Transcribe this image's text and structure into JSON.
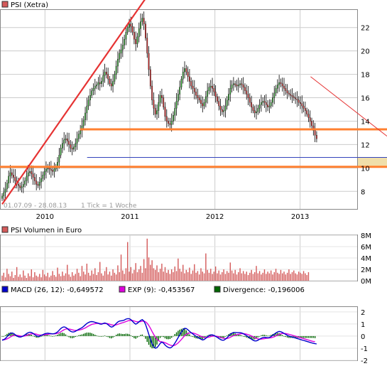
{
  "colors": {
    "up": "#2aa12a",
    "down": "#cc2222",
    "wick": "#000000",
    "trend_red": "#e63333",
    "support_orange": "#ff8030",
    "blue_line": "#3344bb",
    "zone": "#f0dfaa",
    "macd": "#0000cc",
    "signal": "#dd00dd",
    "divergence": "#006600",
    "volume": "#d45a5a",
    "grid": "#cccccc"
  },
  "panels": {
    "price": {
      "title": "PSI (Xetra)",
      "date_range": "01.07.09 - 28.08.13",
      "tick_note": "1 Tick = 1 Woche"
    },
    "volume": {
      "title": "PSI Volumen in Euro"
    },
    "macd": {
      "legend": [
        {
          "label": "MACD (26, 12): -0,649572",
          "color": "#0000cc"
        },
        {
          "label": "EXP (9): -0,453567",
          "color": "#dd00dd"
        },
        {
          "label": "Divergence: -0,196006",
          "color": "#006600"
        }
      ]
    }
  },
  "chart_data": [
    {
      "type": "candlestick",
      "title": "PSI (Xetra)",
      "subtitle": "01.07.09 - 28.08.13 1 Tick = 1 Woche",
      "x_ticks": [
        "2010",
        "2011",
        "2012",
        "2013"
      ],
      "x_range": [
        "2009-07-01",
        "2013-08-28"
      ],
      "y_ticks": [
        "8",
        "10",
        "12",
        "14",
        "16",
        "18",
        "20",
        "22"
      ],
      "ylim": [
        6.5,
        23.5
      ],
      "grid": true,
      "weekly_close": [
        7.6,
        7.9,
        8.2,
        8.7,
        9.3,
        9.6,
        9.4,
        9.2,
        8.9,
        8.6,
        8.5,
        8.3,
        8.4,
        8.6,
        8.9,
        9.3,
        9.6,
        9.7,
        9.5,
        9.2,
        8.9,
        8.6,
        8.5,
        8.8,
        9.1,
        9.4,
        9.7,
        9.9,
        10.0,
        9.9,
        9.8,
        9.7,
        9.9,
        10.1,
        10.5,
        11.1,
        11.7,
        12.1,
        12.4,
        12.5,
        12.3,
        12.0,
        11.7,
        11.6,
        11.8,
        12.1,
        12.5,
        12.9,
        13.2,
        13.6,
        14.1,
        14.7,
        15.3,
        15.8,
        16.2,
        16.6,
        16.8,
        17.0,
        17.1,
        17.3,
        17.2,
        17.4,
        17.9,
        18.2,
        18.0,
        17.6,
        17.2,
        17.0,
        17.4,
        18.0,
        18.7,
        19.3,
        19.8,
        20.1,
        20.5,
        21.0,
        21.6,
        22.0,
        22.3,
        22.1,
        21.6,
        21.0,
        20.6,
        21.2,
        21.9,
        22.5,
        22.8,
        22.3,
        21.1,
        19.8,
        18.4,
        17.0,
        15.8,
        15.1,
        14.6,
        14.9,
        15.6,
        16.2,
        16.0,
        15.2,
        14.4,
        14.0,
        13.8,
        13.7,
        14.0,
        14.5,
        15.1,
        15.7,
        16.3,
        16.9,
        17.6,
        18.2,
        18.5,
        18.2,
        17.8,
        17.4,
        17.0,
        16.8,
        16.5,
        16.2,
        16.0,
        15.8,
        15.5,
        15.3,
        15.6,
        16.1,
        16.6,
        16.9,
        17.0,
        16.8,
        16.5,
        16.1,
        15.7,
        15.3,
        15.0,
        14.8,
        14.9,
        15.3,
        15.8,
        16.3,
        16.8,
        17.1,
        17.2,
        17.1,
        17.0,
        17.1,
        17.2,
        17.1,
        16.9,
        16.6,
        16.3,
        16.0,
        15.6,
        15.2,
        14.9,
        14.7,
        14.8,
        15.1,
        15.4,
        15.6,
        15.7,
        15.6,
        15.4,
        15.2,
        15.3,
        15.6,
        16.0,
        16.4,
        16.8,
        17.1,
        17.3,
        17.2,
        17.0,
        16.8,
        16.6,
        16.4,
        16.3,
        16.2,
        16.1,
        16.0,
        15.9,
        15.8,
        15.6,
        15.5,
        15.3,
        15.1,
        14.9,
        14.6,
        14.3,
        14.0,
        13.6,
        13.2,
        12.8,
        12.5
      ],
      "annotations": {
        "orange_support_levels": [
          13.3,
          10.1
        ],
        "blue_level": 10.9,
        "red_trendline": {
          "from": [
            "2009-07-01",
            6.9
          ],
          "to": [
            "2011-03-10",
            24.5
          ]
        },
        "descending_resistance": {
          "from": [
            "2013-02-15",
            17.8
          ],
          "to": [
            "2013-08-28",
            13.2
          ]
        },
        "price_zone": [
          10.1,
          10.9
        ]
      }
    },
    {
      "type": "bar",
      "title": "PSI Volumen in Euro",
      "y_ticks": [
        "0M",
        "2M",
        "4M",
        "6M",
        "8M"
      ],
      "ylim": [
        0,
        8
      ],
      "weekly_volume_m": [
        0.9,
        1.4,
        0.6,
        2.1,
        1.2,
        0.8,
        1.6,
        0.5,
        1.0,
        2.4,
        0.7,
        1.1,
        0.6,
        1.8,
        0.9,
        0.5,
        1.3,
        0.8,
        2.0,
        0.6,
        1.5,
        0.9,
        0.7,
        1.2,
        0.6,
        1.9,
        1.1,
        0.8,
        1.4,
        0.6,
        0.9,
        1.7,
        1.0,
        0.7,
        2.3,
        1.2,
        0.8,
        1.6,
        0.9,
        1.3,
        2.8,
        1.1,
        0.7,
        1.5,
        0.9,
        1.2,
        2.1,
        1.4,
        0.8,
        2.6,
        1.6,
        1.1,
        3.0,
        1.4,
        0.9,
        1.8,
        1.2,
        2.2,
        1.0,
        1.5,
        3.3,
        1.3,
        0.9,
        1.7,
        2.4,
        1.1,
        1.6,
        0.9,
        2.0,
        1.4,
        1.1,
        2.7,
        1.5,
        4.6,
        1.8,
        1.2,
        2.2,
        6.8,
        1.6,
        2.4,
        1.3,
        1.9,
        3.1,
        1.5,
        2.0,
        2.6,
        1.4,
        3.8,
        2.2,
        7.4,
        4.1,
        2.8,
        3.6,
        2.2,
        1.9,
        2.7,
        1.5,
        2.1,
        3.0,
        1.6,
        2.4,
        1.4,
        1.9,
        1.2,
        2.0,
        1.5,
        2.5,
        1.7,
        3.9,
        2.1,
        1.6,
        2.8,
        1.3,
        1.9,
        1.5,
        2.3,
        1.2,
        1.8,
        2.9,
        1.4,
        1.7,
        1.1,
        2.2,
        1.6,
        1.3,
        4.8,
        1.9,
        1.4,
        2.1,
        1.2,
        1.6,
        2.5,
        1.3,
        1.8,
        1.1,
        1.5,
        2.0,
        1.2,
        1.7,
        1.4,
        3.2,
        1.8,
        1.3,
        1.9,
        1.1,
        1.5,
        2.2,
        1.3,
        1.7,
        1.2,
        1.6,
        1.0,
        1.4,
        1.9,
        1.2,
        1.5,
        2.6,
        1.3,
        1.7,
        1.1,
        1.4,
        2.0,
        1.2,
        1.6,
        1.3,
        1.8,
        1.1,
        1.5,
        2.1,
        1.4,
        1.2,
        1.9,
        1.3,
        1.6,
        1.1,
        1.4,
        2.0,
        1.2,
        1.5,
        1.8,
        1.3,
        1.1,
        1.6,
        1.4,
        1.2,
        1.7,
        1.3,
        1.0,
        1.5
      ]
    },
    {
      "type": "line",
      "title": "MACD (26, 12) / EXP (9) / Divergence",
      "y_ticks": [
        "-2",
        "-1",
        "0",
        "1",
        "2"
      ],
      "ylim": [
        -2,
        2.4
      ],
      "series": [
        {
          "name": "MACD (26, 12)",
          "values": [
            -0.35,
            -0.3,
            -0.2,
            -0.05,
            0.1,
            0.22,
            0.26,
            0.22,
            0.12,
            0.02,
            -0.05,
            -0.08,
            -0.05,
            0.02,
            0.1,
            0.2,
            0.28,
            0.32,
            0.3,
            0.22,
            0.12,
            0.03,
            -0.02,
            0.0,
            0.06,
            0.12,
            0.18,
            0.22,
            0.24,
            0.22,
            0.2,
            0.18,
            0.2,
            0.25,
            0.34,
            0.48,
            0.62,
            0.72,
            0.76,
            0.72,
            0.62,
            0.5,
            0.4,
            0.34,
            0.34,
            0.4,
            0.48,
            0.56,
            0.62,
            0.7,
            0.8,
            0.92,
            1.04,
            1.12,
            1.18,
            1.2,
            1.18,
            1.14,
            1.1,
            1.06,
            1.0,
            0.98,
            1.04,
            1.08,
            1.04,
            0.94,
            0.82,
            0.74,
            0.78,
            0.9,
            1.04,
            1.16,
            1.24,
            1.26,
            1.28,
            1.32,
            1.4,
            1.44,
            1.44,
            1.36,
            1.22,
            1.08,
            0.98,
            1.06,
            1.18,
            1.3,
            1.36,
            1.24,
            0.96,
            0.58,
            0.16,
            -0.26,
            -0.62,
            -0.86,
            -1.0,
            -0.96,
            -0.8,
            -0.6,
            -0.5,
            -0.58,
            -0.74,
            -0.86,
            -0.94,
            -0.98,
            -0.92,
            -0.78,
            -0.58,
            -0.36,
            -0.12,
            0.1,
            0.32,
            0.52,
            0.64,
            0.62,
            0.52,
            0.4,
            0.28,
            0.18,
            0.08,
            -0.02,
            -0.1,
            -0.18,
            -0.26,
            -0.32,
            -0.28,
            -0.18,
            -0.06,
            0.04,
            0.1,
            0.1,
            0.06,
            -0.02,
            -0.1,
            -0.2,
            -0.28,
            -0.34,
            -0.34,
            -0.26,
            -0.14,
            0.0,
            0.14,
            0.24,
            0.3,
            0.3,
            0.28,
            0.28,
            0.28,
            0.26,
            0.2,
            0.12,
            0.04,
            -0.06,
            -0.16,
            -0.26,
            -0.34,
            -0.4,
            -0.4,
            -0.34,
            -0.26,
            -0.18,
            -0.12,
            -0.1,
            -0.12,
            -0.14,
            -0.12,
            -0.04,
            0.06,
            0.16,
            0.26,
            0.34,
            0.38,
            0.36,
            0.3,
            0.22,
            0.14,
            0.06,
            0.0,
            -0.04,
            -0.08,
            -0.12,
            -0.16,
            -0.2,
            -0.24,
            -0.28,
            -0.32,
            -0.36,
            -0.4,
            -0.44,
            -0.48,
            -0.52,
            -0.56,
            -0.6,
            -0.62,
            -0.65
          ]
        },
        {
          "name": "EXP (9)",
          "values": [
            -0.3,
            -0.3,
            -0.28,
            -0.23,
            -0.16,
            -0.08,
            0.0,
            0.05,
            0.07,
            0.06,
            0.04,
            0.01,
            -0.01,
            -0.01,
            0.01,
            0.05,
            0.1,
            0.15,
            0.19,
            0.2,
            0.19,
            0.16,
            0.12,
            0.09,
            0.08,
            0.09,
            0.11,
            0.13,
            0.15,
            0.17,
            0.18,
            0.18,
            0.18,
            0.2,
            0.23,
            0.28,
            0.36,
            0.44,
            0.52,
            0.58,
            0.6,
            0.59,
            0.56,
            0.52,
            0.48,
            0.47,
            0.47,
            0.49,
            0.52,
            0.56,
            0.61,
            0.67,
            0.75,
            0.83,
            0.9,
            0.96,
            1.0,
            1.03,
            1.05,
            1.05,
            1.04,
            1.03,
            1.03,
            1.04,
            1.04,
            1.02,
            0.98,
            0.93,
            0.9,
            0.9,
            0.93,
            0.97,
            1.02,
            1.07,
            1.11,
            1.15,
            1.2,
            1.25,
            1.29,
            1.3,
            1.29,
            1.25,
            1.2,
            1.18,
            1.18,
            1.2,
            1.23,
            1.23,
            1.18,
            1.06,
            0.88,
            0.65,
            0.39,
            0.14,
            -0.09,
            -0.26,
            -0.38,
            -0.45,
            -0.48,
            -0.5,
            -0.55,
            -0.61,
            -0.68,
            -0.74,
            -0.78,
            -0.79,
            -0.75,
            -0.67,
            -0.56,
            -0.43,
            -0.28,
            -0.12,
            0.03,
            0.15,
            0.22,
            0.26,
            0.27,
            0.25,
            0.22,
            0.17,
            0.11,
            0.05,
            -0.01,
            -0.07,
            -0.11,
            -0.12,
            -0.11,
            -0.08,
            -0.04,
            -0.01,
            0.0,
            0.0,
            -0.02,
            -0.06,
            -0.1,
            -0.15,
            -0.19,
            -0.21,
            -0.2,
            -0.16,
            -0.1,
            -0.03,
            0.03,
            0.08,
            0.12,
            0.15,
            0.18,
            0.2,
            0.2,
            0.19,
            0.16,
            0.12,
            0.07,
            0.01,
            -0.06,
            -0.13,
            -0.19,
            -0.23,
            -0.25,
            -0.25,
            -0.23,
            -0.21,
            -0.19,
            -0.17,
            -0.16,
            -0.14,
            -0.1,
            -0.05,
            0.01,
            0.08,
            0.14,
            0.19,
            0.22,
            0.22,
            0.21,
            0.18,
            0.15,
            0.11,
            0.07,
            0.03,
            -0.01,
            -0.05,
            -0.09,
            -0.13,
            -0.17,
            -0.21,
            -0.25,
            -0.29,
            -0.33,
            -0.37,
            -0.41,
            -0.45,
            -0.45
          ]
        },
        {
          "name": "Divergence",
          "values_note": "MACD minus EXP (9), drawn as histogram"
        }
      ]
    }
  ]
}
